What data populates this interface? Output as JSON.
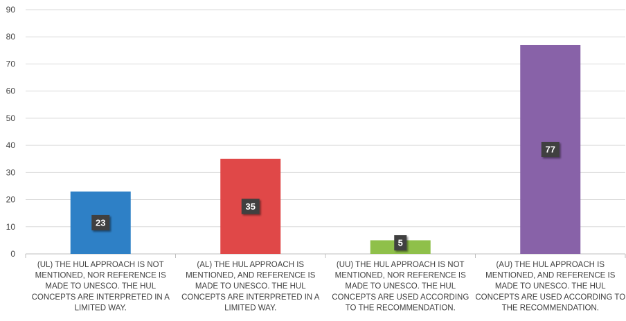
{
  "chart_data": {
    "type": "bar",
    "categories": [
      [
        "(UL) THE HUL APPROACH IS NOT",
        "MENTIONED, NOR REFERENCE IS",
        "MADE TO UNESCO. THE HUL",
        "CONCEPTS ARE INTERPRETED IN A",
        "LIMITED WAY."
      ],
      [
        "(AL) THE HUL APPROACH IS",
        "MENTIONED, AND REFERENCE IS",
        "MADE TO UNESCO. THE HUL",
        "CONCEPTS ARE INTERPRETED IN A",
        "LIMITED WAY."
      ],
      [
        "(UU) THE HUL APPROACH IS NOT",
        "MENTIONED, NOR REFERENCE IS",
        "MADE TO UNESCO. THE HUL",
        "CONCEPTS ARE USED ACCORDING",
        "TO THE RECOMMENDATION."
      ],
      [
        "(AU) THE HUL APPROACH IS",
        "MENTIONED, AND REFERENCE IS",
        "MADE TO UNESCO. THE HUL",
        "CONCEPTS ARE USED ACCORDING TO",
        "THE RECOMMENDATION."
      ]
    ],
    "values": [
      23,
      35,
      5,
      77
    ],
    "data_labels": [
      "23",
      "35",
      "5",
      "77"
    ],
    "colors": [
      "#2e80c6",
      "#e04848",
      "#8fc04a",
      "#8862a8"
    ],
    "ylim": [
      0,
      90
    ],
    "yticks": [
      0,
      10,
      20,
      30,
      40,
      50,
      60,
      70,
      80,
      90
    ],
    "grid": true,
    "title": "",
    "xlabel": "",
    "ylabel": ""
  }
}
